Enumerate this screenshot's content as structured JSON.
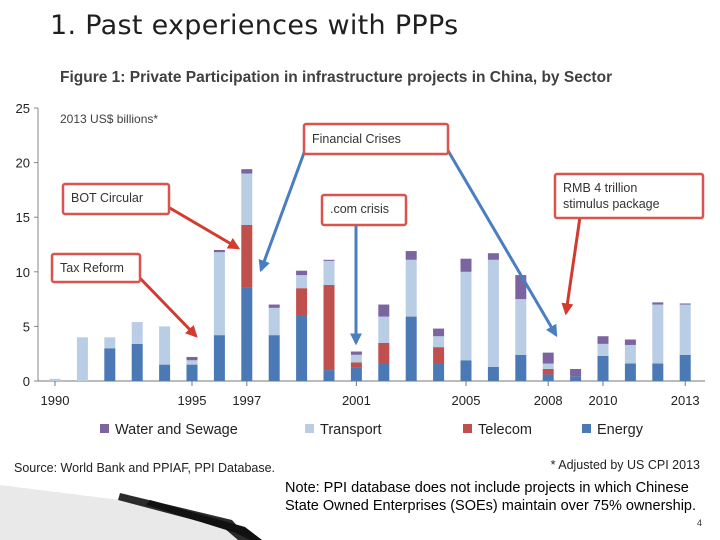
{
  "slide": {
    "title": "1. Past experiences with PPPs",
    "note": "Note: PPI database does not include projects in which Chinese State Owned Enterprises (SOEs) maintain over 75% ownership.",
    "page_number": "4"
  },
  "colors": {
    "energy": "#4a79b5",
    "telecom": "#c0504d",
    "transport": "#b9cde5",
    "water": "#7b64a0",
    "callout_border": "#d9534f",
    "arrow_red": "#d23b2e",
    "arrow_blue": "#4a7ec2"
  },
  "chart_data": {
    "type": "bar",
    "stacked": true,
    "title": "Figure 1: Private Participation in infrastructure projects in China, by Sector",
    "ylabel": "2013 US$ billions*",
    "xlabel": "",
    "ylim": [
      0,
      25
    ],
    "yticks": [
      0,
      5,
      10,
      15,
      20,
      25
    ],
    "categories": [
      "1990",
      "1991",
      "1992",
      "1993",
      "1994",
      "1995",
      "1996",
      "1997",
      "1998",
      "1999",
      "2000",
      "2001",
      "2002",
      "2003",
      "2004",
      "2005",
      "2006",
      "2007",
      "2008",
      "2009",
      "2010",
      "2011",
      "2012",
      "2013"
    ],
    "x_tick_labels": [
      {
        "index": 0,
        "label": "1990"
      },
      {
        "index": 5,
        "label": "1995"
      },
      {
        "index": 7,
        "label": "1997"
      },
      {
        "index": 11,
        "label": "2001"
      },
      {
        "index": 15,
        "label": "2005"
      },
      {
        "index": 18,
        "label": "2008"
      },
      {
        "index": 20,
        "label": "2010"
      },
      {
        "index": 23,
        "label": "2013"
      }
    ],
    "series": [
      {
        "name": "Energy",
        "color_key": "energy",
        "values": [
          0,
          0,
          3.0,
          3.4,
          1.5,
          1.5,
          4.2,
          8.6,
          4.2,
          6.0,
          1.0,
          1.2,
          1.6,
          5.9,
          1.6,
          1.9,
          1.3,
          2.4,
          0.6,
          0.4,
          2.3,
          1.6,
          1.6,
          2.4
        ]
      },
      {
        "name": "Telecom",
        "color_key": "telecom",
        "values": [
          0,
          0,
          0,
          0,
          0,
          0,
          0,
          5.7,
          0,
          2.5,
          7.8,
          0.5,
          1.9,
          0,
          1.5,
          0,
          0,
          0,
          0.5,
          0,
          0,
          0,
          0,
          0
        ]
      },
      {
        "name": "Transport",
        "color_key": "transport",
        "values": [
          0.2,
          4.0,
          1.0,
          2.0,
          3.5,
          0.4,
          7.6,
          4.7,
          2.5,
          1.2,
          2.2,
          0.7,
          2.4,
          5.2,
          1.0,
          8.1,
          9.8,
          5.1,
          0.5,
          0,
          1.1,
          1.7,
          5.4,
          4.6
        ]
      },
      {
        "name": "Water and Sewage",
        "color_key": "water",
        "values": [
          0,
          0,
          0,
          0,
          0,
          0.3,
          0.2,
          0.4,
          0.3,
          0.4,
          0.1,
          0.3,
          1.1,
          0.8,
          0.7,
          1.2,
          0.6,
          2.2,
          1.0,
          0.7,
          0.7,
          0.5,
          0.2,
          0.1
        ]
      }
    ],
    "legend_position": "bottom",
    "annotations": [
      {
        "name": "financial-crises",
        "text": "Financial Crises",
        "style": "red-box",
        "arrow_color": "blue"
      },
      {
        "name": "bot-circular",
        "text": "BOT Circular",
        "style": "red-box",
        "arrow_color": "red"
      },
      {
        "name": "tax-reform",
        "text": "Tax Reform",
        "style": "red-box",
        "arrow_color": "red"
      },
      {
        "name": "com-crisis",
        "text": ".com crisis",
        "style": "red-box",
        "arrow_color": "blue"
      },
      {
        "name": "rmb-stimulus",
        "text_lines": [
          "RMB 4 trillion",
          "stimulus package"
        ],
        "style": "red-box",
        "arrow_color": "red"
      }
    ],
    "source": "Source:  World Bank and PPIAF, PPI Database.",
    "footnote": "* Adjusted  by US CPI 2013"
  }
}
